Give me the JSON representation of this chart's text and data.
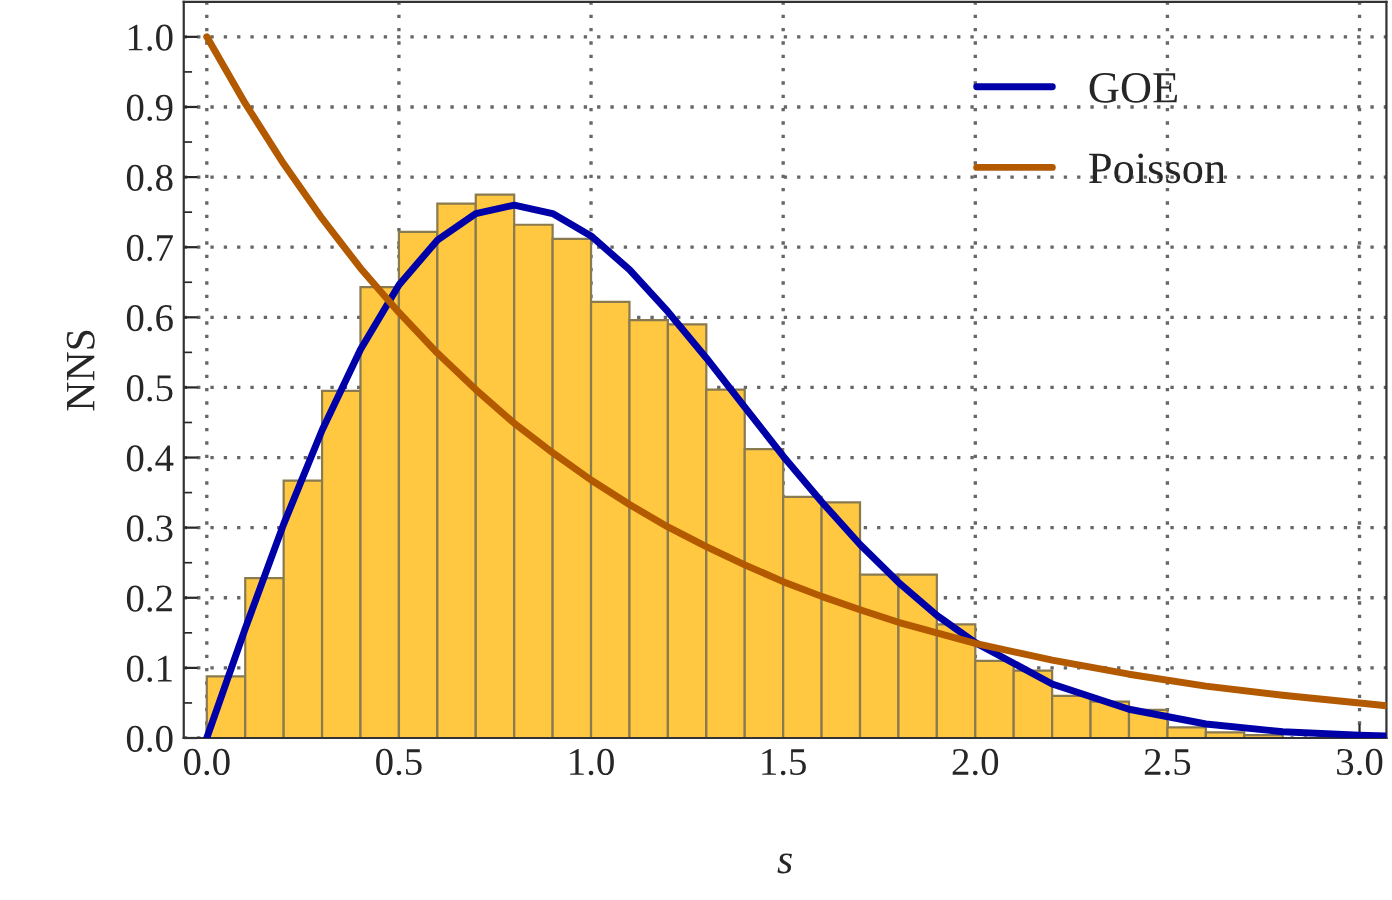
{
  "chart_data": {
    "type": "histogram",
    "xlabel": "s",
    "ylabel": "NNS",
    "bins": [
      0.0,
      0.1,
      0.2,
      0.3,
      0.4,
      0.5,
      0.6,
      0.7,
      0.8,
      0.9,
      1.0,
      1.1,
      1.2,
      1.3,
      1.4,
      1.5,
      1.6,
      1.7,
      1.8,
      1.9,
      2.0,
      2.1,
      2.2,
      2.3,
      2.4,
      2.5,
      2.6,
      2.7,
      2.8
    ],
    "values": [
      0.088,
      0.228,
      0.367,
      0.495,
      0.643,
      0.722,
      0.762,
      0.775,
      0.732,
      0.712,
      0.622,
      0.596,
      0.59,
      0.497,
      0.412,
      0.344,
      0.336,
      0.233,
      0.233,
      0.162,
      0.11,
      0.096,
      0.06,
      0.052,
      0.04,
      0.015,
      0.008,
      0.004
    ],
    "color": "#ffc840",
    "series": [
      {
        "name": "GOE",
        "type": "line",
        "color": "#0000a8",
        "x": [
          0,
          0.1,
          0.2,
          0.3,
          0.4,
          0.5,
          0.6,
          0.7,
          0.8,
          0.9,
          1.0,
          1.1,
          1.2,
          1.3,
          1.4,
          1.5,
          1.6,
          1.7,
          1.8,
          1.9,
          2.0,
          2.2,
          2.4,
          2.6,
          2.8,
          3.0,
          3.07
        ],
        "values": [
          0,
          0.156,
          0.305,
          0.439,
          0.554,
          0.646,
          0.71,
          0.748,
          0.76,
          0.748,
          0.716,
          0.668,
          0.608,
          0.542,
          0.472,
          0.402,
          0.337,
          0.276,
          0.222,
          0.175,
          0.136,
          0.077,
          0.041,
          0.02,
          0.009,
          0.004,
          0.003
        ]
      },
      {
        "name": "Poisson",
        "type": "line",
        "color": "#b35900",
        "x": [
          0,
          0.1,
          0.2,
          0.3,
          0.4,
          0.5,
          0.6,
          0.7,
          0.8,
          0.9,
          1.0,
          1.1,
          1.2,
          1.3,
          1.4,
          1.5,
          1.6,
          1.7,
          1.8,
          1.9,
          2.0,
          2.2,
          2.4,
          2.6,
          2.8,
          3.0,
          3.07
        ],
        "values": [
          1.0,
          0.905,
          0.819,
          0.741,
          0.67,
          0.607,
          0.549,
          0.497,
          0.449,
          0.407,
          0.368,
          0.333,
          0.301,
          0.273,
          0.247,
          0.223,
          0.202,
          0.183,
          0.165,
          0.15,
          0.135,
          0.111,
          0.091,
          0.074,
          0.061,
          0.05,
          0.046
        ]
      }
    ],
    "xlim": [
      -0.06,
      3.07
    ],
    "ylim": [
      0,
      1.05
    ],
    "xticks": [
      {
        "value": 0,
        "label": "0.0"
      },
      {
        "value": 0.5,
        "label": "0.5"
      },
      {
        "value": 1.0,
        "label": "1.0"
      },
      {
        "value": 1.5,
        "label": "1.5"
      },
      {
        "value": 2.0,
        "label": "2.0"
      },
      {
        "value": 2.5,
        "label": "2.5"
      },
      {
        "value": 3.0,
        "label": "3.0"
      }
    ],
    "yticks": [
      {
        "value": 0,
        "label": "0.0"
      },
      {
        "value": 0.1,
        "label": "0.1"
      },
      {
        "value": 0.2,
        "label": "0.2"
      },
      {
        "value": 0.3,
        "label": "0.3"
      },
      {
        "value": 0.4,
        "label": "0.4"
      },
      {
        "value": 0.5,
        "label": "0.5"
      },
      {
        "value": 0.6,
        "label": "0.6"
      },
      {
        "value": 0.7,
        "label": "0.7"
      },
      {
        "value": 0.8,
        "label": "0.8"
      },
      {
        "value": 0.9,
        "label": "0.9"
      },
      {
        "value": 1.0,
        "label": "1.0"
      }
    ],
    "grid": true,
    "legend": "top right"
  }
}
